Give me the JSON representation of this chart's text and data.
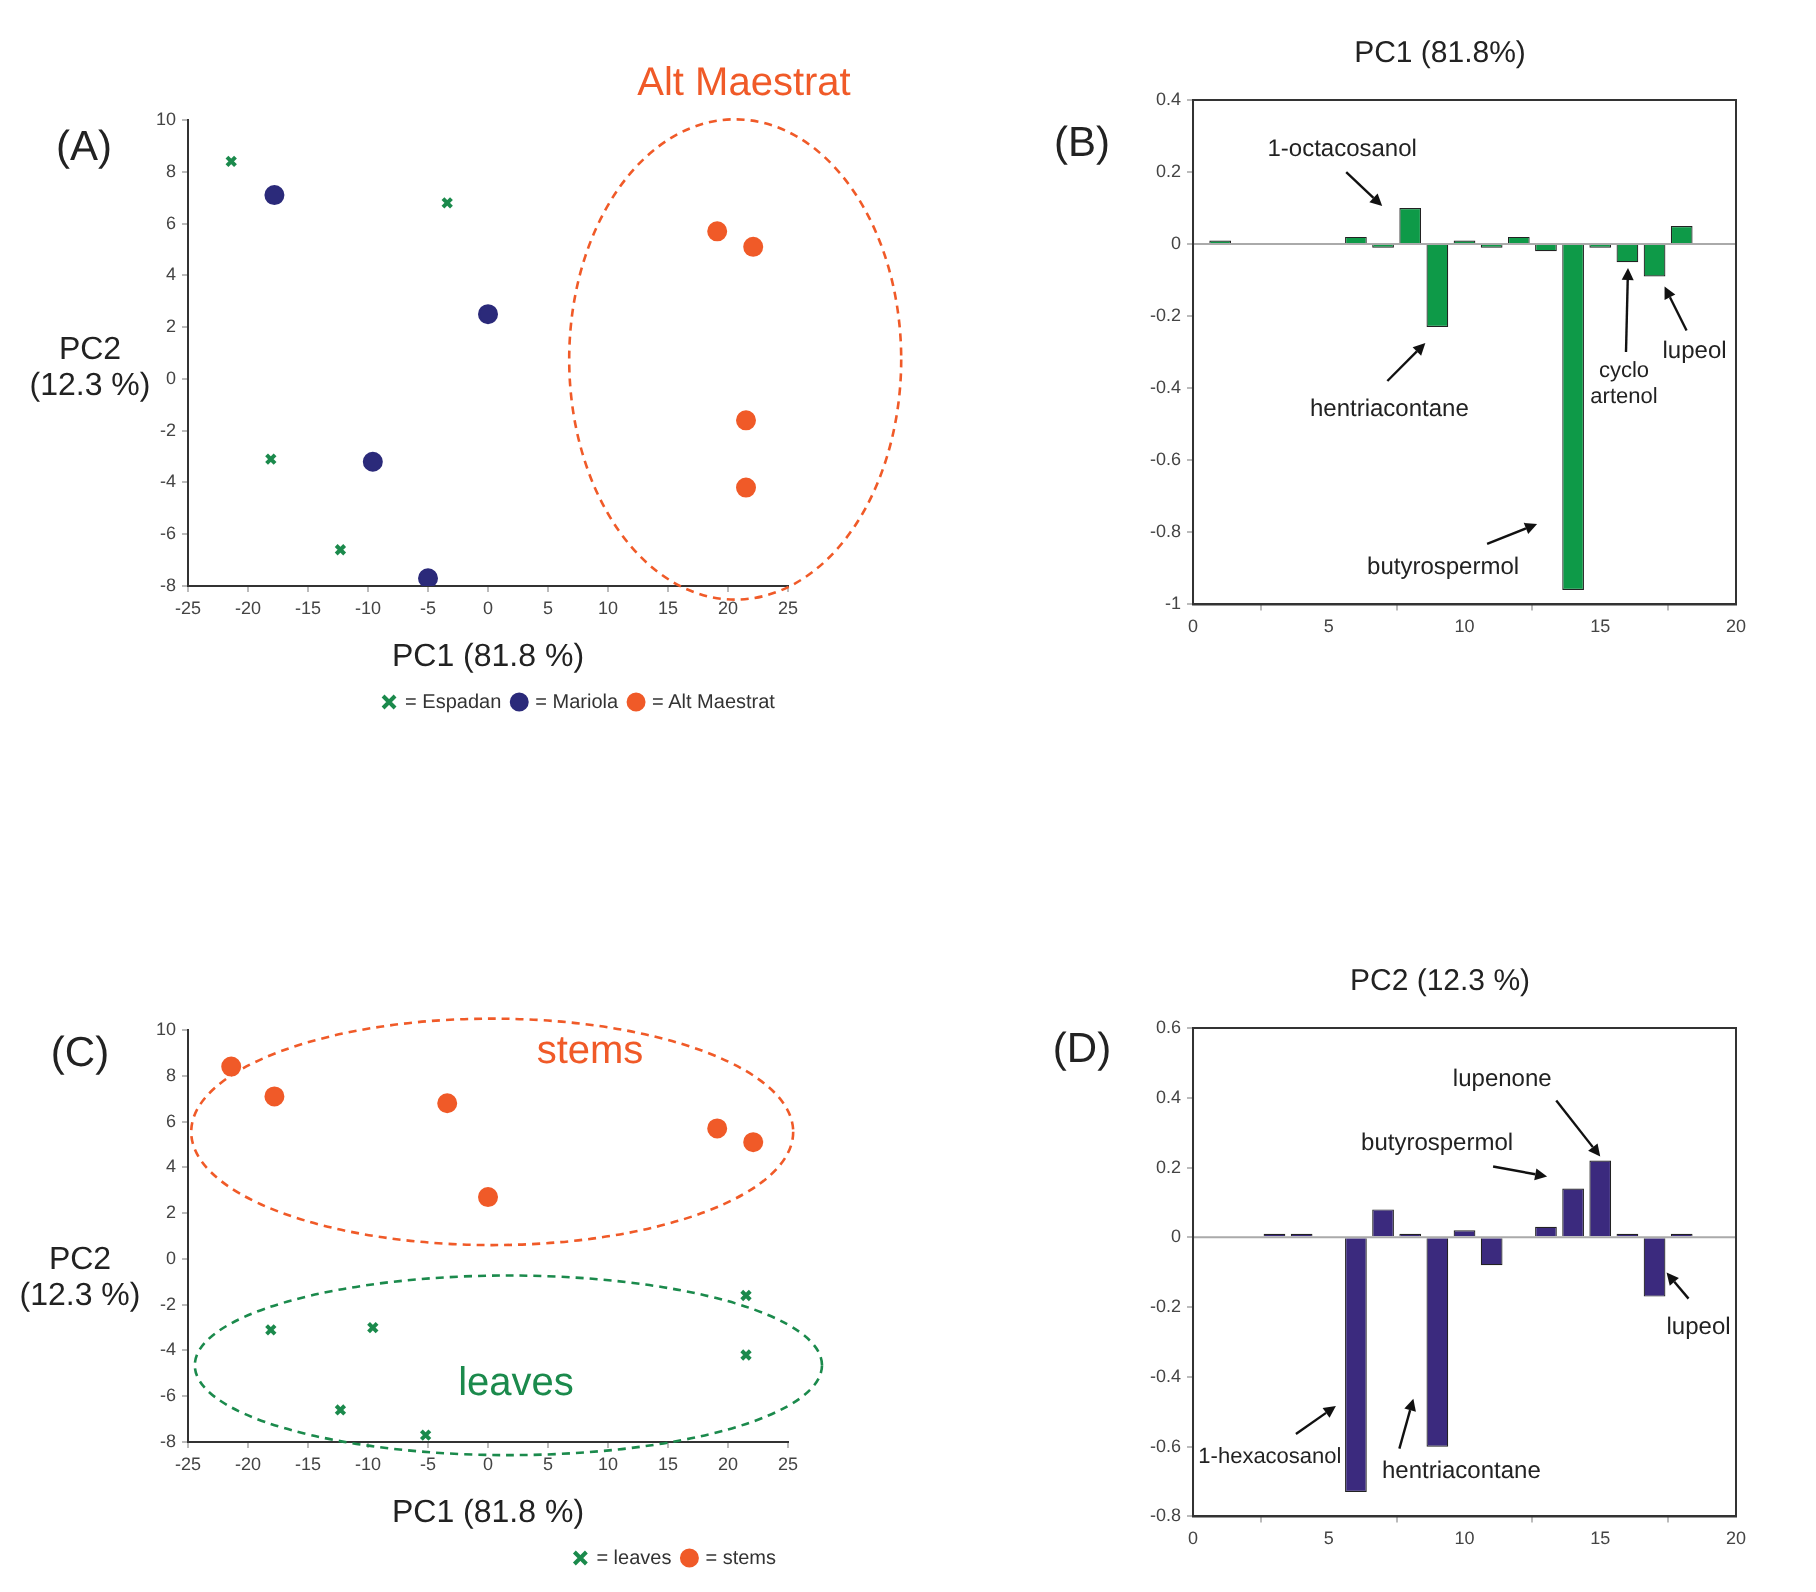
{
  "chart_data": [
    {
      "type": "scatter",
      "xlabel": "PC1 (81.8 %)",
      "ylabel": "PC2 (12.3 %)",
      "xlim": [
        -25,
        25
      ],
      "xticks": [
        -25,
        -20,
        -15,
        -10,
        -5,
        0,
        5,
        10,
        15,
        20,
        25
      ],
      "ylim": [
        -8,
        10
      ],
      "yticks": [
        -8,
        -6,
        -4,
        -2,
        0,
        2,
        4,
        6,
        8,
        10
      ],
      "grid": false,
      "legend": "bottom right",
      "annotations": [
        "(A)",
        "Alt Maestrat"
      ],
      "series": [
        {
          "name": "= Espadan",
          "color": "#1b8a4c",
          "marker": "cross",
          "x": [
            -21.4,
            -3.4,
            -18.1,
            -12.3
          ],
          "values": [
            8.4,
            6.8,
            -3.1,
            -6.6
          ]
        },
        {
          "name": "= Mariola",
          "color": "#2b2a7a",
          "marker": "circle",
          "x": [
            -17.8,
            0,
            -9.6,
            -5
          ],
          "values": [
            7.1,
            2.5,
            -3.2,
            -7.7
          ]
        },
        {
          "name": "= Alt Maestrat",
          "color": "#f05a28",
          "marker": "circle",
          "x": [
            19.1,
            22.1,
            21.5,
            21.5
          ],
          "values": [
            5.7,
            5.1,
            -1.6,
            -4.2
          ]
        }
      ]
    },
    {
      "type": "bar",
      "title": "PC1 (81.8%)",
      "x": [
        1,
        2,
        3,
        4,
        5,
        6,
        7,
        8,
        9,
        10,
        11,
        12,
        13,
        14,
        15,
        16,
        17,
        18
      ],
      "values": [
        0.01,
        0,
        0,
        0,
        0,
        0.02,
        -0.01,
        0.1,
        -0.23,
        0.01,
        -0.01,
        0.02,
        -0.02,
        -0.96,
        -0.01,
        -0.05,
        -0.09,
        0.05
      ],
      "color": "#0e9a48",
      "xlim": [
        0,
        20
      ],
      "xticks": [
        0,
        5,
        10,
        15,
        20
      ],
      "ylim": [
        -1,
        0.4
      ],
      "yticks": [
        -1,
        -0.8,
        -0.6,
        -0.4,
        -0.2,
        0,
        0.2,
        0.4
      ],
      "grid": false,
      "legend": false,
      "ref_lines": [
        {
          "axis": "y",
          "value": 0,
          "color": "#aaaaaa"
        }
      ],
      "annotations": [
        "(B)",
        {
          "text": "1-octacosanol",
          "x": 8,
          "y": 0.1
        },
        {
          "text": "hentriacontane",
          "x": 9,
          "y": -0.23
        },
        {
          "text": "butyrospermol",
          "x": 14,
          "y": -0.96
        },
        "cyclo artenol",
        {
          "text": "lupeol",
          "x": 17,
          "y": -0.09
        }
      ]
    },
    {
      "type": "scatter",
      "xlabel": "PC1 (81.8 %)",
      "ylabel": "PC2 (12.3 %)",
      "xlim": [
        -25,
        25
      ],
      "xticks": [
        -25,
        -20,
        -15,
        -10,
        -5,
        0,
        5,
        10,
        15,
        20,
        25
      ],
      "ylim": [
        -8,
        10
      ],
      "yticks": [
        -8,
        -6,
        -4,
        -2,
        0,
        2,
        4,
        6,
        8,
        10
      ],
      "grid": false,
      "legend": "bottom right",
      "annotations": [
        "(C)",
        "stems",
        "leaves"
      ],
      "series": [
        {
          "name": "= leaves",
          "color": "#1b8a4c",
          "marker": "cross",
          "x": [
            -18.1,
            -9.6,
            -12.3,
            -5.2,
            21.5,
            21.5
          ],
          "values": [
            -3.1,
            -3,
            -6.6,
            -7.7,
            -1.6,
            -4.2
          ]
        },
        {
          "name": "= stems",
          "color": "#f05a28",
          "marker": "circle",
          "x": [
            -21.4,
            -17.8,
            -3.4,
            0,
            19.1,
            22.1
          ],
          "values": [
            8.4,
            7.1,
            6.8,
            2.7,
            5.7,
            5.1
          ]
        }
      ]
    },
    {
      "type": "bar",
      "title": "PC2 (12.3 %)",
      "x": [
        1,
        2,
        3,
        4,
        5,
        6,
        7,
        8,
        9,
        10,
        11,
        12,
        13,
        14,
        15,
        16,
        17,
        18
      ],
      "values": [
        0,
        0,
        0.01,
        0.01,
        0,
        -0.73,
        0.08,
        0.01,
        -0.6,
        0.02,
        -0.08,
        0,
        0.03,
        0.14,
        0.22,
        0.01,
        -0.17,
        0.01
      ],
      "color": "#3b2a7e",
      "xlim": [
        0,
        20
      ],
      "xticks": [
        0,
        5,
        10,
        15,
        20
      ],
      "ylim": [
        -0.8,
        0.6
      ],
      "yticks": [
        -0.8,
        -0.6,
        -0.4,
        -0.2,
        0,
        0.2,
        0.4,
        0.6
      ],
      "grid": false,
      "legend": false,
      "ref_lines": [
        {
          "axis": "y",
          "value": 0,
          "color": "#aaaaaa"
        }
      ],
      "annotations": [
        "(D)",
        {
          "text": "1-hexacosanol",
          "x": 6,
          "y": -0.73
        },
        {
          "text": "hentriacontane",
          "x": 9,
          "y": -0.6
        },
        {
          "text": "butyrospermol",
          "x": 14,
          "y": 0.14
        },
        {
          "text": "lupenone",
          "x": 15,
          "y": 0.22
        },
        {
          "text": "lupeol",
          "x": 17,
          "y": -0.17
        }
      ]
    }
  ]
}
